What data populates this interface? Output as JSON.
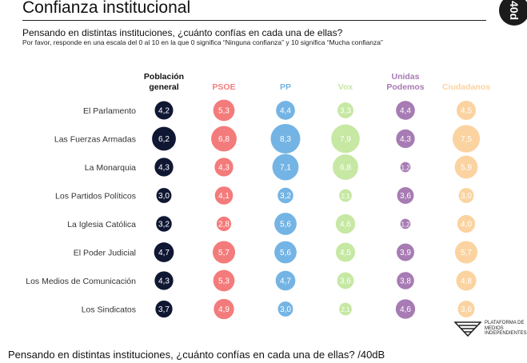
{
  "header": {
    "title": "Confianza institucional",
    "corner_badge": "40d"
  },
  "question": "Pensando en distintas instituciones, ¿cuánto confías en cada una de ellas?",
  "instructions": "Por favor, responde en una escala del 0 al 10 en la que 0 significa “Ninguna confianza” y 10 significa “Mucha confianza”",
  "logo": {
    "text": "PLATAFORMA DE MEDIOS INDEPENDIENTES",
    "icon": "platform-logo-icon"
  },
  "caption": "Pensando en distintas instituciones, ¿cuánto confías en cada una de ellas? /40dB",
  "chart_data": {
    "type": "bubble-matrix",
    "title": "Confianza institucional",
    "scale": [
      0,
      10
    ],
    "categories": [
      "El Parlamento",
      "Las Fuerzas Armadas",
      "La Monarquia",
      "Los Partidos Políticos",
      "La Iglesia Católica",
      "El Poder Judicial",
      "Los Medios de Comunicación",
      "Los Sindicatos"
    ],
    "series": [
      {
        "name": "Población general",
        "header_lines": [
          "Población",
          "general"
        ],
        "color": "#0f1733",
        "header_color": "#111111",
        "text_color": "#ffffff",
        "values": [
          "4,2",
          "6,2",
          "4,3",
          "3,0",
          "3,2",
          "4,7",
          "4,3",
          "3,7"
        ]
      },
      {
        "name": "PSOE",
        "header_lines": [
          "PSOE"
        ],
        "color": "#f47b7b",
        "header_color": "#f47b7b",
        "text_color": "#ffffff",
        "values": [
          "5,3",
          "6,8",
          "4,3",
          "4,1",
          "2,8",
          "5,7",
          "5,3",
          "4,9"
        ]
      },
      {
        "name": "PP",
        "header_lines": [
          "PP"
        ],
        "color": "#74b4e4",
        "header_color": "#74b4e4",
        "text_color": "#ffffff",
        "values": [
          "4,4",
          "8,3",
          "7,1",
          "3,2",
          "5,6",
          "5,6",
          "4,7",
          "3,0"
        ]
      },
      {
        "name": "Vox",
        "header_lines": [
          "Vox"
        ],
        "color": "#c6e8a3",
        "header_color": "#c6e8a3",
        "text_color": "#ffffff",
        "values": [
          "3,3",
          "7,9",
          "6,8",
          "2,1",
          "4,6",
          "4,5",
          "3,6",
          "2,1"
        ]
      },
      {
        "name": "Unidas Podemos",
        "header_lines": [
          "Unidas",
          "Podemos"
        ],
        "color": "#a77bb3",
        "header_color": "#a77bb3",
        "text_color": "#ffffff",
        "values": [
          "4,4",
          "4,3",
          "1,2",
          "3,6",
          "1,2",
          "3,9",
          "3,8",
          "4,6"
        ]
      },
      {
        "name": "Ciudadanos",
        "header_lines": [
          "Ciudadanos"
        ],
        "color": "#fbd3a0",
        "header_color": "#fbd3a0",
        "text_color": "#ffffff",
        "values": [
          "4,5",
          "7,5",
          "5,9",
          "3,0",
          "4,0",
          "5,7",
          "4,8",
          "3,6"
        ]
      }
    ]
  }
}
